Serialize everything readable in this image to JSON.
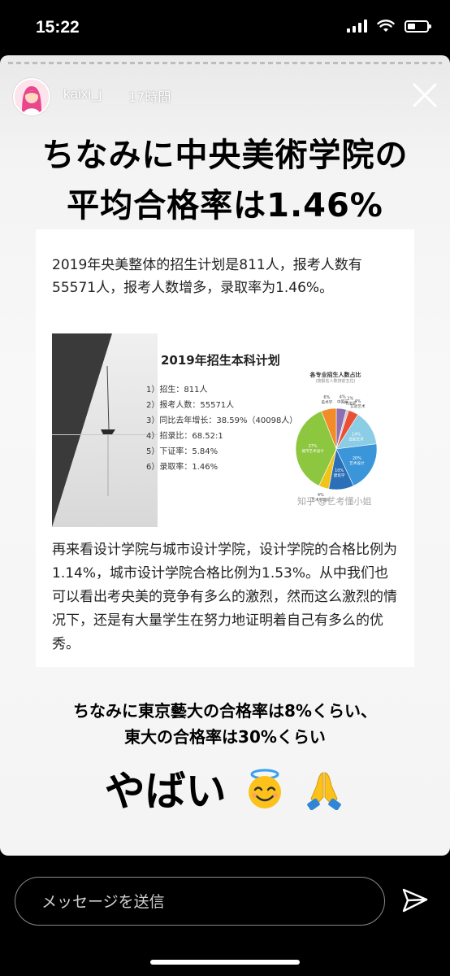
{
  "status_bar": {
    "time": "15:22"
  },
  "story": {
    "username": "kaixi_j",
    "posted_ago": "17時間",
    "headline_line1": "ちなみに中央美術学院の",
    "headline_line2": "平均合格率は1.46%",
    "card": {
      "paragraph1": "2019年央美整体的招生计划是811人，报考人数有55571人，报考人数增多，录取率为1.46%。",
      "figure": {
        "title": "2019年招生本科计划",
        "items": [
          "1）招生：811人",
          "2）报考人数：55571人",
          "3）同比去年增长：38.59%（40098人）",
          "4）招录比：68.52:1",
          "5）下证率：5.84%",
          "6）录取率：1.46%"
        ],
        "pie_title": "各专业招生人数占比",
        "pie_subtitle": "(按报名人数排前五位)",
        "watermark": "知乎 @艺考懂小姐"
      },
      "paragraph2": "再来看设计学院与城市设计学院，设计学院的合格比例为1.14%，城市设计学院合格比例为1.53%。从中我们也可以看出考央美的竞争有多么的激烈，然而这么激烈的情况下，还是有大量学生在努力地证明着自己有多么的优秀。"
    },
    "bottom_line1": "ちなみに東京藝大の合格率は8%くらい、",
    "bottom_line2": "東大の合格率は30%くらい",
    "big_text": "やばい",
    "emojis": [
      "smiling-face-with-halo-icon",
      "folded-hands-icon"
    ]
  },
  "chart_data": {
    "type": "pie",
    "title": "各专业招生人数占比",
    "subtitle": "(按报名人数排前五位)",
    "categories": [
      "中国画",
      "书法学",
      "实验艺术",
      "造型艺术",
      "艺术设计",
      "建筑学",
      "艺术学理论",
      "城市艺术设计",
      "美术学"
    ],
    "values": [
      4,
      1,
      4,
      14,
      20,
      10,
      4,
      37,
      6
    ],
    "colors": [
      "#8e6fb4",
      "#c9c9c9",
      "#e94f35",
      "#8ccde6",
      "#3a95d9",
      "#2a6fb8",
      "#f0c419",
      "#8dc63f",
      "#f28c28"
    ]
  },
  "message_bar": {
    "placeholder": "メッセージを送信"
  },
  "colors": {
    "story_bg": "#f5f5f5",
    "text": "#000000",
    "ui_bg": "#000000"
  }
}
